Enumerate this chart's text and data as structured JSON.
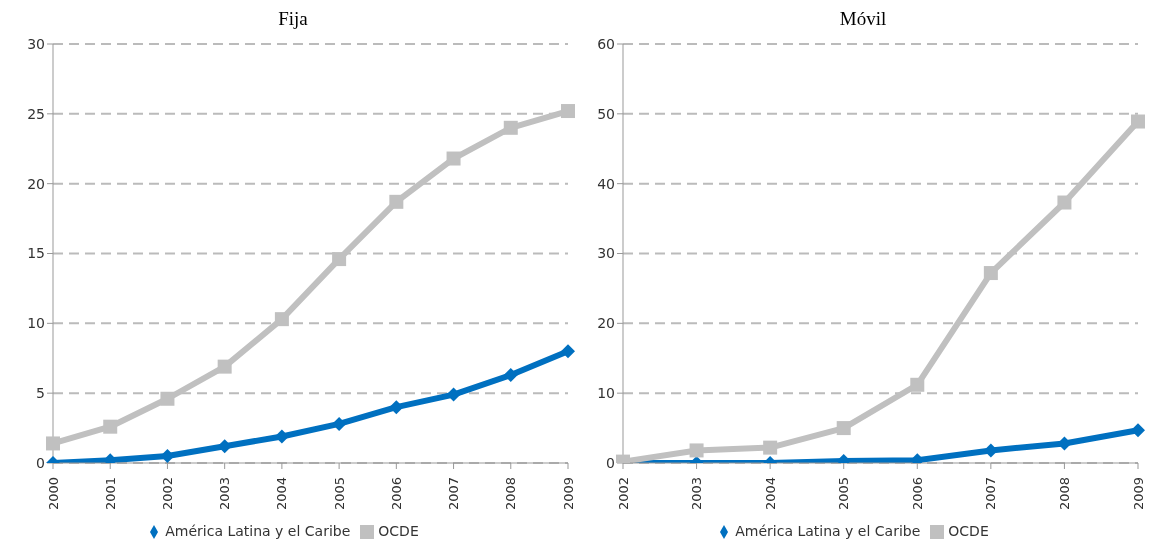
{
  "chart_data": [
    {
      "type": "line",
      "title": "Fija",
      "categories": [
        "2000",
        "2001",
        "2002",
        "2003",
        "2004",
        "2005",
        "2006",
        "2007",
        "2008",
        "2009"
      ],
      "series": [
        {
          "name": "América Latina y el Caribe",
          "color": "#0070c0",
          "marker": "diamond",
          "values": [
            0,
            0.2,
            0.5,
            1.2,
            1.9,
            2.8,
            4.0,
            4.9,
            6.3,
            8.0
          ]
        },
        {
          "name": "OCDE",
          "color": "#c0c0c0",
          "marker": "square",
          "values": [
            1.4,
            2.6,
            4.6,
            6.9,
            10.3,
            14.6,
            18.7,
            21.8,
            24.0,
            25.2
          ]
        }
      ],
      "ylim": [
        0,
        30
      ],
      "yticks": [
        0,
        5,
        10,
        15,
        20,
        25,
        30
      ],
      "grid": "y",
      "legend": "bottom"
    },
    {
      "type": "line",
      "title": "Móvil",
      "categories": [
        "2002",
        "2003",
        "2004",
        "2005",
        "2006",
        "2007",
        "2008",
        "2009"
      ],
      "series": [
        {
          "name": "América Latina y el Caribe",
          "color": "#0070c0",
          "marker": "diamond",
          "values": [
            0,
            0,
            0,
            0.3,
            0.4,
            1.8,
            2.8,
            4.7
          ]
        },
        {
          "name": "OCDE",
          "color": "#c0c0c0",
          "marker": "square",
          "values": [
            0.2,
            1.8,
            2.2,
            5.0,
            11.2,
            27.2,
            37.3,
            48.9
          ]
        }
      ],
      "ylim": [
        0,
        60
      ],
      "yticks": [
        0,
        10,
        20,
        30,
        40,
        50,
        60
      ],
      "grid": "y",
      "legend": "bottom"
    }
  ]
}
